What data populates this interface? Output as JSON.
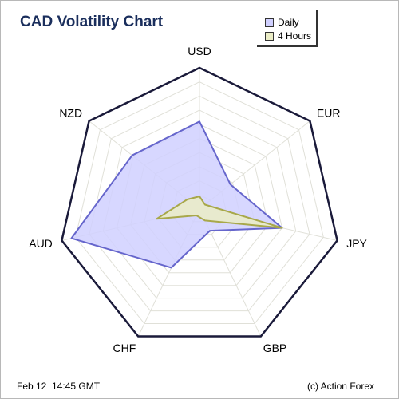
{
  "chart_data": {
    "type": "radar",
    "title": "CAD Volatility Chart",
    "categories": [
      "USD",
      "EUR",
      "JPY",
      "GBP",
      "CHF",
      "AUD",
      "NZD"
    ],
    "range": [
      0,
      10
    ],
    "grid": true,
    "legend_position": "top-right",
    "series": [
      {
        "name": "Daily",
        "values": [
          6.2,
          2.8,
          6.0,
          1.7,
          4.6,
          9.3,
          6.1
        ],
        "stroke": "#6666cc",
        "fill": "#d0d0ff"
      },
      {
        "name": "4 Hours",
        "values": [
          0.9,
          0.5,
          6.0,
          0.9,
          0.5,
          3.1,
          1.1
        ],
        "stroke": "#a8a84a",
        "fill": "#ebedc6"
      }
    ]
  },
  "footer": {
    "date": "Feb 12  14:45 GMT",
    "credit": "(c) Action Forex"
  },
  "colors": {
    "title": "#1a2e5c",
    "outline": "#1a1a3a",
    "grid": "#e0e0d8"
  }
}
